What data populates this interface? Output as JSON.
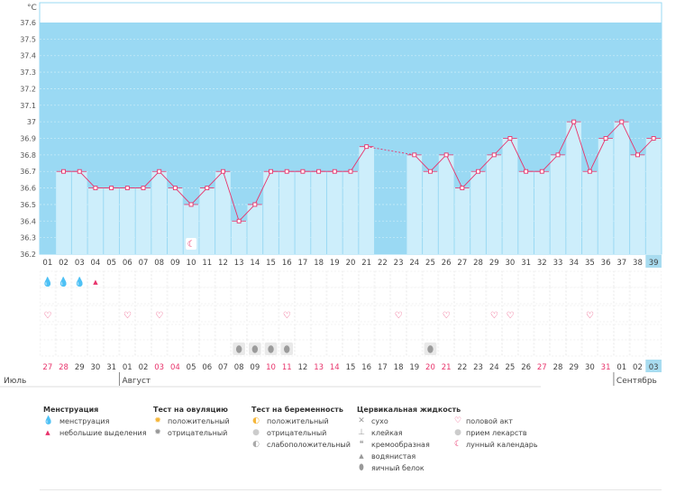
{
  "chart_data": {
    "type": "bar",
    "unit": "°C",
    "ylim": [
      36.2,
      37.6
    ],
    "yticks": [
      "37.6",
      "37.5",
      "37.4",
      "37.3",
      "37.2",
      "37.1",
      "37",
      "36.9",
      "36.8",
      "36.7",
      "36.6",
      "36.5",
      "36.4",
      "36.3",
      "36.2"
    ],
    "cycle_days": [
      "01",
      "02",
      "03",
      "04",
      "05",
      "06",
      "07",
      "08",
      "09",
      "10",
      "11",
      "12",
      "13",
      "14",
      "15",
      "16",
      "17",
      "18",
      "19",
      "20",
      "21",
      "22",
      "23",
      "24",
      "25",
      "26",
      "27",
      "28",
      "29",
      "30",
      "31",
      "32",
      "33",
      "34",
      "35",
      "36",
      "37",
      "38",
      "39"
    ],
    "temperatures": [
      null,
      36.7,
      36.7,
      36.6,
      36.6,
      36.6,
      36.6,
      36.7,
      36.6,
      36.5,
      36.6,
      36.7,
      36.4,
      36.5,
      36.7,
      36.7,
      36.7,
      36.7,
      36.7,
      36.7,
      36.85,
      null,
      null,
      36.8,
      36.7,
      36.8,
      36.6,
      36.7,
      36.8,
      36.9,
      36.7,
      36.7,
      36.8,
      37.0,
      36.7,
      36.9,
      37.0,
      36.8,
      36.9
    ],
    "current_day": "39",
    "dates": [
      "27",
      "28",
      "29",
      "30",
      "31",
      "01",
      "02",
      "03",
      "04",
      "05",
      "06",
      "07",
      "08",
      "09",
      "10",
      "11",
      "12",
      "13",
      "14",
      "15",
      "16",
      "17",
      "18",
      "19",
      "20",
      "21",
      "22",
      "23",
      "24",
      "25",
      "26",
      "27",
      "28",
      "29",
      "30",
      "31",
      "01",
      "02",
      "03"
    ],
    "highlighted_dates": [
      true,
      true,
      false,
      false,
      false,
      false,
      false,
      true,
      true,
      false,
      false,
      false,
      false,
      false,
      true,
      true,
      false,
      true,
      true,
      false,
      false,
      false,
      false,
      false,
      true,
      true,
      false,
      false,
      false,
      false,
      false,
      true,
      false,
      false,
      false,
      true,
      false,
      false,
      false
    ],
    "months": [
      {
        "name": "Июль",
        "day": 0
      },
      {
        "name": "Август",
        "day": 5
      },
      {
        "name": "Сентябрь",
        "day": 36
      }
    ],
    "menstruation_days": [
      0,
      1,
      2
    ],
    "light_spotting_days": [
      3
    ],
    "intercourse_days": [
      0,
      5,
      7,
      15,
      22,
      25,
      28,
      29,
      34
    ],
    "egg_white_days": [
      12,
      13,
      14,
      15,
      24
    ],
    "lunar_days": [
      9
    ]
  },
  "legend": {
    "menstruation": {
      "title": "Менструация",
      "items": [
        "менструация",
        "небольшие выделения"
      ]
    },
    "ovulation": {
      "title": "Тест на овуляцию",
      "items": [
        "положительный",
        "отрицательный"
      ]
    },
    "pregnancy": {
      "title": "Тест на беременность",
      "items": [
        "положительный",
        "отрицательный",
        "слабоположительный"
      ]
    },
    "cervical": {
      "title": "Цервикальная жидкость",
      "items": [
        "сухо",
        "клейкая",
        "кремообразная",
        "водянистая",
        "яичный белок"
      ]
    },
    "other": {
      "items": [
        "половой акт",
        "прием лекарств",
        "лунный календарь"
      ]
    }
  },
  "colors": {
    "sky": "#9ad9f3",
    "bar": "#cdeefb",
    "line": "#e8336b",
    "current": "#a8dcf0",
    "highlight": "#e8336b"
  }
}
